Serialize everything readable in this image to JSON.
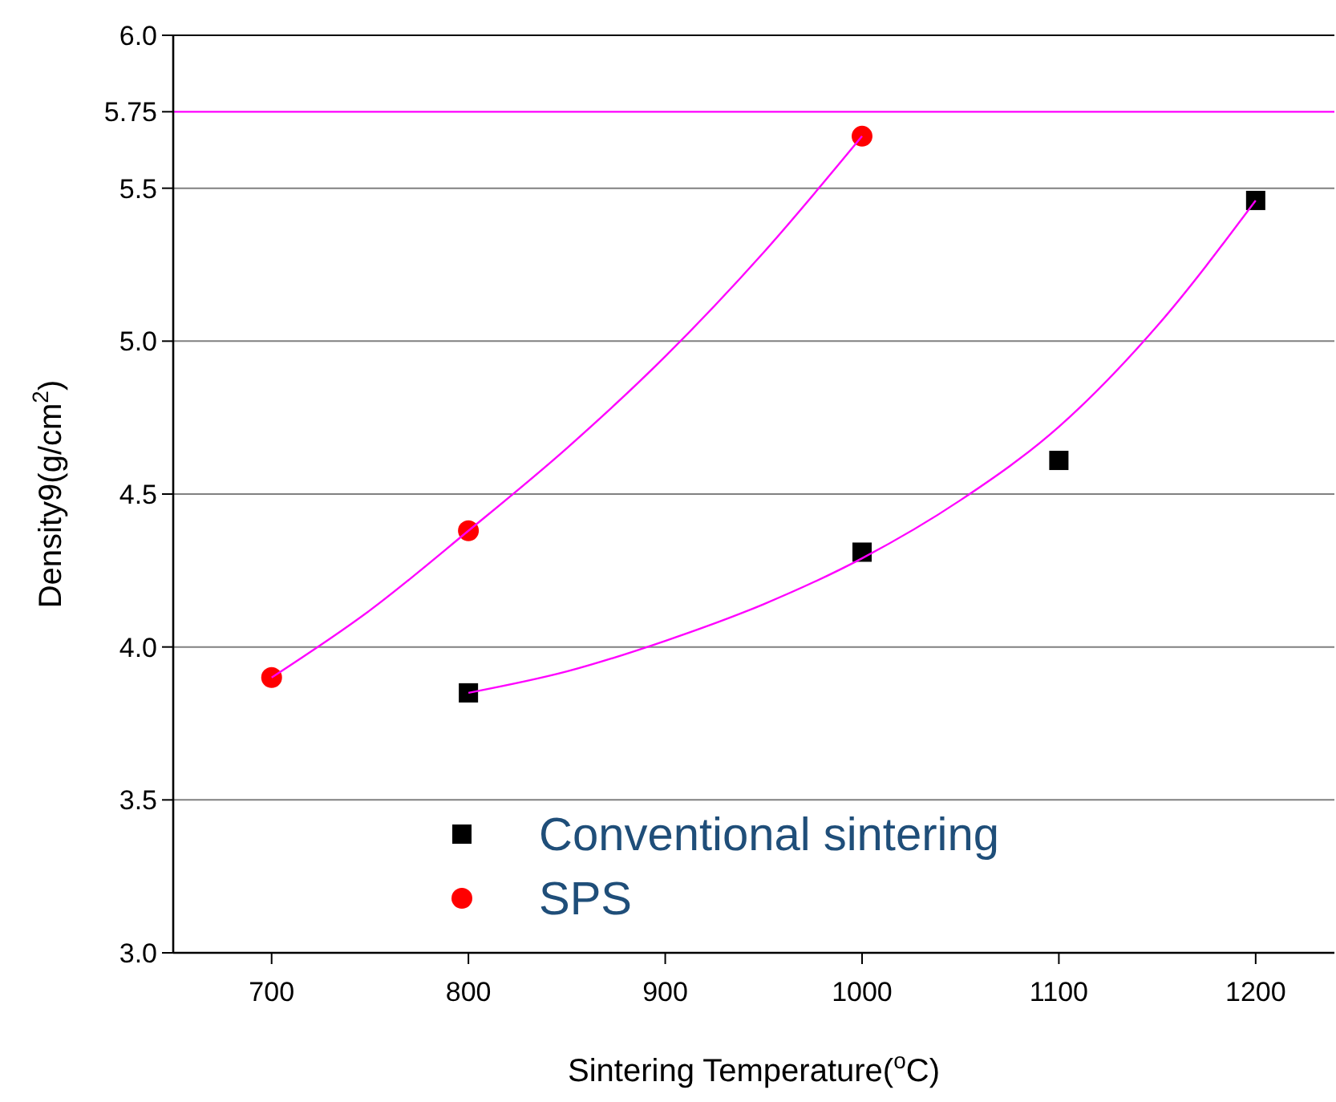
{
  "chart_data": {
    "type": "scatter",
    "xlabel": "Sintering Temperature($^{o}$C)",
    "ylabel": "Density9(g/cm$^{2}$)",
    "xlim": [
      650,
      1240
    ],
    "xticks": [
      700,
      800,
      900,
      1000,
      1100,
      1200
    ],
    "ylim": [
      3.0,
      6.0
    ],
    "yticks": [
      {
        "value": 3,
        "label": "3.0"
      },
      3.5,
      {
        "value": 4,
        "label": "4.0"
      },
      4.5,
      {
        "value": 5,
        "label": "5.0"
      },
      5.5,
      5.75,
      {
        "value": 6,
        "label": "6.0"
      }
    ],
    "grid": "y",
    "legend": "bottom",
    "ref_lines": [
      {
        "axis": "y",
        "value": 5.75,
        "color": "#ff00ff"
      }
    ],
    "series": [
      {
        "name": "Conventional sintering",
        "color": "#000000",
        "marker": "square",
        "x": [
          800,
          1000,
          1100,
          1200
        ],
        "values": [
          3.85,
          4.31,
          4.61,
          5.46
        ]
      },
      {
        "name": "SPS",
        "color": "#ff0000",
        "marker": "circle",
        "x": [
          700,
          800,
          1000
        ],
        "values": [
          3.9,
          4.38,
          5.67
        ]
      },
      {
        "type": "line",
        "color": "#ff00ff",
        "marker": "none",
        "x": [
          800,
          850,
          900,
          950,
          1000,
          1050,
          1100,
          1150,
          1200
        ],
        "values": [
          3.85,
          3.92,
          4.02,
          4.14,
          4.29,
          4.48,
          4.72,
          5.05,
          5.46
        ]
      },
      {
        "type": "line",
        "color": "#ff00ff",
        "marker": "none",
        "x": [
          700,
          750,
          800,
          850,
          900,
          950,
          1000
        ],
        "values": [
          3.9,
          4.12,
          4.38,
          4.65,
          4.95,
          5.29,
          5.67
        ]
      }
    ]
  }
}
